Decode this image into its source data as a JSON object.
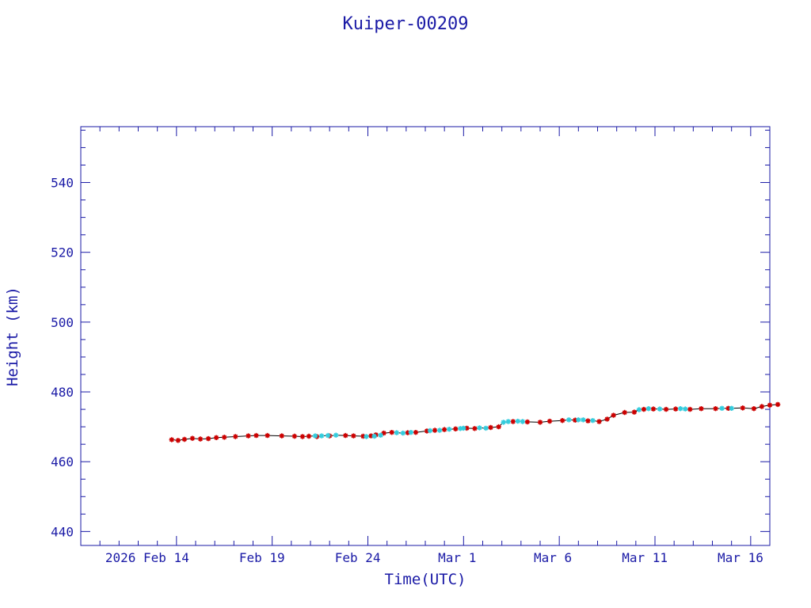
{
  "chart_data": {
    "type": "scatter",
    "title": "Kuiper-00209",
    "xlabel": "Time(UTC)",
    "ylabel": "Height (km)",
    "x_ticks": [
      "2026 Feb 14",
      "Feb 19",
      "Feb 24",
      "Mar  1",
      "Mar  6",
      "Mar 11",
      "Mar 16"
    ],
    "y_ticks": [
      "440",
      "460",
      "480",
      "500",
      "520",
      "540"
    ],
    "xlim": [
      "2026-02-09",
      "2026-03-17"
    ],
    "ylim": [
      436,
      556
    ],
    "grid": false,
    "colors": {
      "axis": "#1a1aa6",
      "line": "#000000",
      "primary_points": "#cc0000",
      "secondary_points": "#33ccdd"
    },
    "series": [
      {
        "marker": "star",
        "color": "#cc0000",
        "points": [
          [
            "2026-02-13 18:00",
            466.3
          ],
          [
            "2026-02-14 02:00",
            466.1
          ],
          [
            "2026-02-14 10:00",
            466.4
          ],
          [
            "2026-02-14 20:00",
            466.7
          ],
          [
            "2026-02-15 06:00",
            466.5
          ],
          [
            "2026-02-15 16:00",
            466.6
          ],
          [
            "2026-02-16 02:00",
            466.9
          ],
          [
            "2026-02-16 12:00",
            467.0
          ],
          [
            "2026-02-17 02:00",
            467.2
          ],
          [
            "2026-02-17 18:00",
            467.4
          ],
          [
            "2026-02-18 04:00",
            467.5
          ],
          [
            "2026-02-18 18:00",
            467.5
          ],
          [
            "2026-02-19 12:00",
            467.4
          ],
          [
            "2026-02-20 04:00",
            467.3
          ],
          [
            "2026-02-20 14:00",
            467.2
          ],
          [
            "2026-02-20 22:00",
            467.3
          ],
          [
            "2026-02-21 08:00",
            467.2
          ],
          [
            "2026-02-22 00:00",
            467.4
          ],
          [
            "2026-02-22 20:00",
            467.5
          ],
          [
            "2026-02-23 06:00",
            467.4
          ],
          [
            "2026-02-23 18:00",
            467.3
          ],
          [
            "2026-02-24 04:00",
            467.4
          ],
          [
            "2026-02-24 10:00",
            467.7
          ],
          [
            "2026-02-24 20:00",
            468.2
          ],
          [
            "2026-02-25 06:00",
            468.4
          ],
          [
            "2026-02-26 02:00",
            468.3
          ],
          [
            "2026-02-26 12:00",
            468.4
          ],
          [
            "2026-02-27 02:00",
            468.8
          ],
          [
            "2026-02-27 12:00",
            469.0
          ],
          [
            "2026-02-28 00:00",
            469.2
          ],
          [
            "2026-02-28 14:00",
            469.4
          ],
          [
            "2026-03-01 04:00",
            469.6
          ],
          [
            "2026-03-01 14:00",
            469.5
          ],
          [
            "2026-03-02 10:00",
            469.8
          ],
          [
            "2026-03-02 20:00",
            470.0
          ],
          [
            "2026-03-03 14:00",
            471.5
          ],
          [
            "2026-03-04 08:00",
            471.4
          ],
          [
            "2026-03-05 00:00",
            471.3
          ],
          [
            "2026-03-05 12:00",
            471.6
          ],
          [
            "2026-03-06 04:00",
            471.8
          ],
          [
            "2026-03-06 20:00",
            471.9
          ],
          [
            "2026-03-07 12:00",
            471.7
          ],
          [
            "2026-03-08 02:00",
            471.5
          ],
          [
            "2026-03-08 12:00",
            472.2
          ],
          [
            "2026-03-08 20:00",
            473.3
          ],
          [
            "2026-03-09 10:00",
            474.1
          ],
          [
            "2026-03-09 22:00",
            474.2
          ],
          [
            "2026-03-10 10:00",
            475.0
          ],
          [
            "2026-03-10 22:00",
            475.1
          ],
          [
            "2026-03-11 14:00",
            475.0
          ],
          [
            "2026-03-12 02:00",
            475.1
          ],
          [
            "2026-03-12 20:00",
            475.0
          ],
          [
            "2026-03-13 10:00",
            475.2
          ],
          [
            "2026-03-14 04:00",
            475.2
          ],
          [
            "2026-03-14 20:00",
            475.3
          ],
          [
            "2026-03-15 14:00",
            475.4
          ],
          [
            "2026-03-16 04:00",
            475.2
          ],
          [
            "2026-03-16 14:00",
            475.8
          ],
          [
            "2026-03-17 00:00",
            476.2
          ],
          [
            "2026-03-17 10:00",
            476.4
          ]
        ]
      },
      {
        "marker": "star",
        "color": "#33ccdd",
        "points": [
          [
            "2026-02-21 06:00",
            467.4
          ],
          [
            "2026-02-21 14:00",
            467.4
          ],
          [
            "2026-02-21 22:00",
            467.5
          ],
          [
            "2026-02-22 08:00",
            467.6
          ],
          [
            "2026-02-23 22:00",
            467.2
          ],
          [
            "2026-02-24 08:00",
            467.3
          ],
          [
            "2026-02-24 16:00",
            467.6
          ],
          [
            "2026-02-25 12:00",
            468.3
          ],
          [
            "2026-02-25 20:00",
            468.2
          ],
          [
            "2026-02-26 06:00",
            468.4
          ],
          [
            "2026-02-27 06:00",
            468.9
          ],
          [
            "2026-02-27 18:00",
            469.0
          ],
          [
            "2026-02-28 06:00",
            469.3
          ],
          [
            "2026-02-28 20:00",
            469.5
          ],
          [
            "2026-03-01 00:00",
            469.6
          ],
          [
            "2026-03-01 20:00",
            469.7
          ],
          [
            "2026-03-02 04:00",
            469.6
          ],
          [
            "2026-03-03 02:00",
            471.3
          ],
          [
            "2026-03-03 08:00",
            471.5
          ],
          [
            "2026-03-03 20:00",
            471.6
          ],
          [
            "2026-03-04 02:00",
            471.5
          ],
          [
            "2026-03-06 12:00",
            472.0
          ],
          [
            "2026-03-07 00:00",
            472.0
          ],
          [
            "2026-03-07 06:00",
            472.0
          ],
          [
            "2026-03-07 18:00",
            471.8
          ],
          [
            "2026-03-10 04:00",
            474.9
          ],
          [
            "2026-03-10 16:00",
            475.2
          ],
          [
            "2026-03-11 06:00",
            475.1
          ],
          [
            "2026-03-12 08:00",
            475.2
          ],
          [
            "2026-03-12 14:00",
            475.1
          ],
          [
            "2026-03-14 12:00",
            475.3
          ],
          [
            "2026-03-15 00:00",
            475.3
          ]
        ]
      }
    ]
  }
}
